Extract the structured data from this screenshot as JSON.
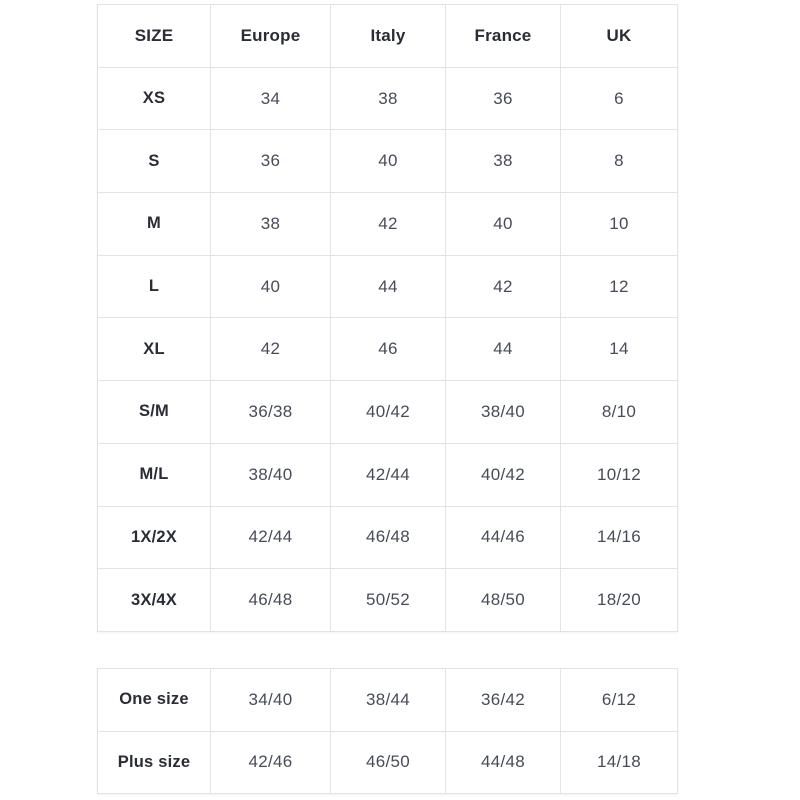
{
  "colors": {
    "background": "#ffffff",
    "border": "#e3e3e4",
    "header_text": "#2a2d36",
    "value_text": "#474c58"
  },
  "size_chart": {
    "columns": [
      "SIZE",
      "Europe",
      "Italy",
      "France",
      "UK"
    ],
    "rows": [
      [
        "XS",
        "34",
        "38",
        "36",
        "6"
      ],
      [
        "S",
        "36",
        "40",
        "38",
        "8"
      ],
      [
        "M",
        "38",
        "42",
        "40",
        "10"
      ],
      [
        "L",
        "40",
        "44",
        "42",
        "12"
      ],
      [
        "XL",
        "42",
        "46",
        "44",
        "14"
      ],
      [
        "S/M",
        "36/38",
        "40/42",
        "38/40",
        "8/10"
      ],
      [
        "M/L",
        "38/40",
        "42/44",
        "40/42",
        "10/12"
      ],
      [
        "1X/2X",
        "42/44",
        "46/48",
        "44/46",
        "14/16"
      ],
      [
        "3X/4X",
        "46/48",
        "50/52",
        "48/50",
        "18/20"
      ]
    ]
  },
  "special_sizes": {
    "rows": [
      [
        "One size",
        "34/40",
        "38/44",
        "36/42",
        "6/12"
      ],
      [
        "Plus size",
        "42/46",
        "46/50",
        "44/48",
        "14/18"
      ]
    ]
  }
}
